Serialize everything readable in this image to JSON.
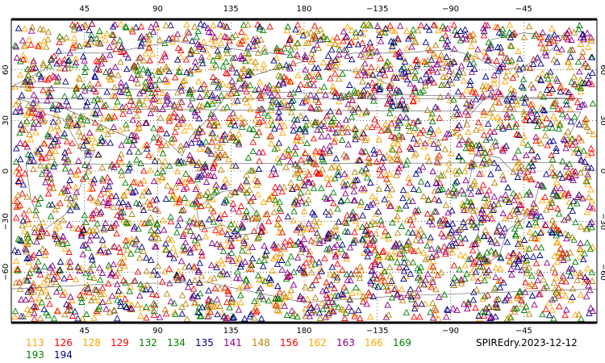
{
  "map": {
    "title": "SPIREdry.2023-12-12",
    "projection": "cylindrical-equidistant",
    "lon_range": [
      0,
      360
    ],
    "lat_range": [
      -90,
      90
    ],
    "grid": "dotted",
    "lon_ticks": [
      {
        "lon": 45,
        "label": "45"
      },
      {
        "lon": 90,
        "label": "90"
      },
      {
        "lon": 135,
        "label": "135"
      },
      {
        "lon": 180,
        "label": "180"
      },
      {
        "lon": 225,
        "label": "−135"
      },
      {
        "lon": 270,
        "label": "−90"
      },
      {
        "lon": 315,
        "label": "−45"
      }
    ],
    "lat_ticks": [
      {
        "lat": 60,
        "label": "60"
      },
      {
        "lat": 30,
        "label": "30"
      },
      {
        "lat": 0,
        "label": "0"
      },
      {
        "lat": -30,
        "label": "−30"
      },
      {
        "lat": -60,
        "label": "−60"
      }
    ]
  },
  "legend": [
    {
      "code": "113",
      "color": "#ffa500"
    },
    {
      "code": "126",
      "color": "#ff0000"
    },
    {
      "code": "128",
      "color": "#ffa500"
    },
    {
      "code": "129",
      "color": "#ff0000"
    },
    {
      "code": "132",
      "color": "#008000"
    },
    {
      "code": "134",
      "color": "#008000"
    },
    {
      "code": "135",
      "color": "#00008b"
    },
    {
      "code": "141",
      "color": "#8b008b"
    },
    {
      "code": "148",
      "color": "#b8860b"
    },
    {
      "code": "156",
      "color": "#ff0000"
    },
    {
      "code": "162",
      "color": "#ffa500"
    },
    {
      "code": "163",
      "color": "#8b008b"
    },
    {
      "code": "166",
      "color": "#ffa500"
    },
    {
      "code": "169",
      "color": "#008000"
    },
    {
      "code": "193",
      "color": "#008000"
    },
    {
      "code": "194",
      "color": "#00008b"
    }
  ],
  "observations": {
    "symbol": "triangle",
    "count_estimate": 4000,
    "colors": [
      "#ffa500",
      "#ff0000",
      "#008000",
      "#00008b",
      "#8b008b",
      "#b8860b"
    ]
  }
}
